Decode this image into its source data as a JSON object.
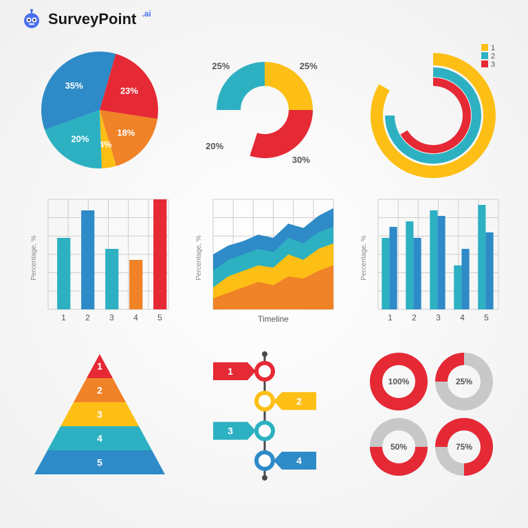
{
  "brand": {
    "name": "SurveyPoint",
    "suffix": ".ai",
    "icon_color": "#4a6ff0"
  },
  "colors": {
    "red": "#e52935",
    "orange": "#f08228",
    "yellow": "#fdbf15",
    "teal": "#2db1c2",
    "blue": "#2e8bc7",
    "gray": "#c8c8c8",
    "grid": "#cccccc",
    "axis_text": "#888888",
    "white": "#ffffff",
    "dark": "#4a4a4a"
  },
  "pie": {
    "type": "pie",
    "slices": [
      {
        "value": 35,
        "color": "#2e8bc7",
        "label": "35%"
      },
      {
        "value": 23,
        "color": "#e52935",
        "label": "23%"
      },
      {
        "value": 18,
        "color": "#f08228",
        "label": "18%"
      },
      {
        "value": 4,
        "color": "#fdbf15",
        "label": "4%"
      },
      {
        "value": 20,
        "color": "#2db1c2",
        "label": "20%"
      }
    ]
  },
  "donut": {
    "type": "donut",
    "slices": [
      {
        "value": 25,
        "color": "#2db1c2",
        "label": "25%"
      },
      {
        "value": 25,
        "color": "#fdbf15",
        "label": "25%"
      },
      {
        "value": 30,
        "color": "#e52935",
        "label": "30%"
      },
      {
        "value": 20,
        "gap": true,
        "label": "20%"
      }
    ]
  },
  "radial": {
    "type": "radial-bar",
    "legend": [
      "1",
      "2",
      "3"
    ],
    "arcs": [
      {
        "color": "#fdbf15",
        "r": 82,
        "w": 18,
        "span": 300
      },
      {
        "color": "#2db1c2",
        "r": 63,
        "w": 14,
        "span": 270
      },
      {
        "color": "#e52935",
        "r": 49,
        "w": 12,
        "span": 240
      }
    ]
  },
  "bar_single": {
    "type": "bar",
    "ylabel": "Percentage, %",
    "xticks": [
      "1",
      "2",
      "3",
      "4",
      "5"
    ],
    "bars": [
      {
        "v": 65,
        "color": "#2db1c2"
      },
      {
        "v": 90,
        "color": "#2e8bc7"
      },
      {
        "v": 55,
        "color": "#2db1c2"
      },
      {
        "v": 45,
        "color": "#f08228"
      },
      {
        "v": 100,
        "color": "#e52935"
      }
    ]
  },
  "area": {
    "type": "area",
    "ylabel": "Percentage, %",
    "xlabel": "Timeline",
    "series": [
      {
        "color": "#f08228",
        "points": [
          10,
          15,
          20,
          25,
          22,
          30,
          28,
          35,
          40
        ]
      },
      {
        "color": "#fdbf15",
        "points": [
          20,
          30,
          35,
          40,
          38,
          50,
          45,
          55,
          60
        ]
      },
      {
        "color": "#2db1c2",
        "points": [
          35,
          45,
          50,
          55,
          52,
          65,
          60,
          70,
          75
        ]
      },
      {
        "color": "#2e8bc7",
        "points": [
          50,
          58,
          62,
          68,
          65,
          78,
          74,
          85,
          92
        ]
      }
    ]
  },
  "bar_grouped": {
    "type": "grouped-bar",
    "ylabel": "Percentage, %",
    "xticks": [
      "1",
      "2",
      "3",
      "4",
      "5"
    ],
    "groups": [
      [
        {
          "v": 65,
          "c": "#2db1c2"
        },
        {
          "v": 75,
          "c": "#2e8bc7"
        }
      ],
      [
        {
          "v": 80,
          "c": "#2db1c2"
        },
        {
          "v": 65,
          "c": "#2e8bc7"
        }
      ],
      [
        {
          "v": 90,
          "c": "#2db1c2"
        },
        {
          "v": 85,
          "c": "#2e8bc7"
        }
      ],
      [
        {
          "v": 40,
          "c": "#2db1c2"
        },
        {
          "v": 55,
          "c": "#2e8bc7"
        }
      ],
      [
        {
          "v": 95,
          "c": "#2db1c2"
        },
        {
          "v": 70,
          "c": "#2e8bc7"
        }
      ]
    ]
  },
  "pyramid": {
    "type": "pyramid",
    "levels": [
      {
        "label": "1",
        "color": "#e52935"
      },
      {
        "label": "2",
        "color": "#f08228"
      },
      {
        "label": "3",
        "color": "#fdbf15"
      },
      {
        "label": "4",
        "color": "#2db1c2"
      },
      {
        "label": "5",
        "color": "#2e8bc7"
      }
    ]
  },
  "timeline": {
    "type": "timeline",
    "line_color": "#4a4a4a",
    "steps": [
      {
        "label": "1",
        "color": "#e52935",
        "side": "left"
      },
      {
        "label": "2",
        "color": "#fdbf15",
        "side": "right"
      },
      {
        "label": "3",
        "color": "#2db1c2",
        "side": "left"
      },
      {
        "label": "4",
        "color": "#2e8bc7",
        "side": "right"
      }
    ]
  },
  "mini_donuts": {
    "type": "donut-grid",
    "items": [
      {
        "pct": 100,
        "color": "#e52935",
        "label": "100%"
      },
      {
        "pct": 25,
        "color": "#e52935",
        "label": "25%"
      },
      {
        "pct": 50,
        "color": "#e52935",
        "label": "50%"
      },
      {
        "pct": 75,
        "color": "#e52935",
        "label": "75%"
      }
    ],
    "bg_color": "#c8c8c8"
  }
}
